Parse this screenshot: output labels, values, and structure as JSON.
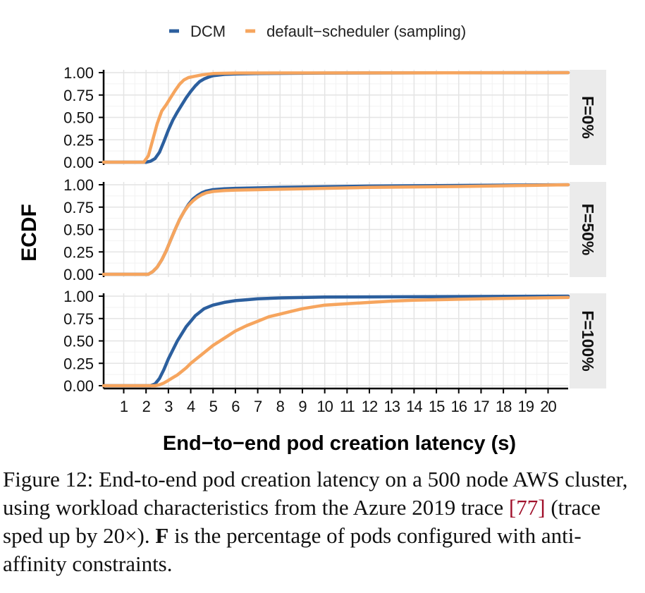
{
  "chart_data": {
    "type": "line",
    "xlabel": "End−to−end pod creation latency (s)",
    "ylabel": "ECDF",
    "xlim": [
      0.1,
      20.9
    ],
    "ylim": [
      0,
      1
    ],
    "x_ticks": [
      1,
      2,
      3,
      4,
      5,
      6,
      7,
      8,
      9,
      10,
      11,
      12,
      13,
      14,
      15,
      16,
      17,
      18,
      19,
      20
    ],
    "y_ticks": [
      "0.00",
      "0.25",
      "0.50",
      "0.75",
      "1.00"
    ],
    "grid": true,
    "legend_position": "top",
    "legend": [
      {
        "name": "DCM",
        "color": "#2c5f9e"
      },
      {
        "name": "default−scheduler (sampling)",
        "color": "#f6a55e"
      }
    ],
    "panels": [
      {
        "label": "F=0%",
        "series": [
          {
            "name": "DCM",
            "color": "#2c5f9e",
            "x": [
              0.1,
              2.0,
              2.2,
              2.4,
              2.6,
              2.8,
              3.0,
              3.2,
              3.4,
              3.6,
              3.8,
              4.0,
              4.2,
              4.4,
              4.6,
              4.8,
              5.0,
              5.5,
              6.0,
              7.0,
              10.0,
              20.9
            ],
            "y": [
              0,
              0,
              0.01,
              0.04,
              0.11,
              0.23,
              0.36,
              0.47,
              0.56,
              0.64,
              0.72,
              0.79,
              0.85,
              0.9,
              0.93,
              0.95,
              0.965,
              0.98,
              0.985,
              0.99,
              0.995,
              1.0
            ]
          },
          {
            "name": "default−scheduler (sampling)",
            "color": "#f6a55e",
            "x": [
              0.1,
              1.9,
              2.1,
              2.3,
              2.5,
              2.7,
              2.9,
              3.1,
              3.3,
              3.5,
              3.7,
              3.9,
              4.2,
              4.5,
              5.0,
              6.0,
              20.9
            ],
            "y": [
              0,
              0,
              0.07,
              0.25,
              0.43,
              0.57,
              0.64,
              0.72,
              0.8,
              0.87,
              0.92,
              0.945,
              0.96,
              0.975,
              0.99,
              0.995,
              1.0
            ]
          }
        ]
      },
      {
        "label": "F=50%",
        "series": [
          {
            "name": "DCM",
            "color": "#2c5f9e",
            "x": [
              0.1,
              2.1,
              2.3,
              2.5,
              2.7,
              2.9,
              3.1,
              3.3,
              3.5,
              3.7,
              3.9,
              4.1,
              4.3,
              4.5,
              4.7,
              5.0,
              5.5,
              6.0,
              8.0,
              12.0,
              20.9
            ],
            "y": [
              0,
              0,
              0.03,
              0.08,
              0.16,
              0.26,
              0.38,
              0.5,
              0.61,
              0.7,
              0.78,
              0.84,
              0.88,
              0.91,
              0.93,
              0.945,
              0.955,
              0.96,
              0.97,
              0.985,
              1.0
            ]
          },
          {
            "name": "default−scheduler (sampling)",
            "color": "#f6a55e",
            "x": [
              0.1,
              2.1,
              2.3,
              2.5,
              2.7,
              2.9,
              3.1,
              3.3,
              3.5,
              3.7,
              3.9,
              4.1,
              4.3,
              4.5,
              4.7,
              5.0,
              5.5,
              6.0,
              7.0,
              9.0,
              12.0,
              16.0,
              20.9
            ],
            "y": [
              0,
              0,
              0.03,
              0.08,
              0.16,
              0.26,
              0.38,
              0.5,
              0.61,
              0.7,
              0.77,
              0.82,
              0.86,
              0.89,
              0.91,
              0.925,
              0.935,
              0.94,
              0.945,
              0.955,
              0.97,
              0.98,
              1.0
            ]
          }
        ]
      },
      {
        "label": "F=100%",
        "series": [
          {
            "name": "DCM",
            "color": "#2c5f9e",
            "x": [
              0.1,
              2.2,
              2.4,
              2.6,
              2.8,
              3.0,
              3.2,
              3.4,
              3.6,
              3.8,
              4.0,
              4.2,
              4.4,
              4.6,
              4.8,
              5.0,
              5.5,
              6.0,
              6.5,
              7.0,
              8.0,
              10.0,
              20.9
            ],
            "y": [
              0,
              0,
              0.02,
              0.08,
              0.18,
              0.3,
              0.4,
              0.5,
              0.58,
              0.66,
              0.72,
              0.78,
              0.82,
              0.86,
              0.88,
              0.9,
              0.93,
              0.95,
              0.96,
              0.97,
              0.98,
              0.99,
              1.0
            ]
          },
          {
            "name": "default−scheduler (sampling)",
            "color": "#f6a55e",
            "x": [
              0.1,
              2.4,
              2.6,
              2.8,
              3.0,
              3.2,
              3.4,
              3.6,
              3.8,
              4.0,
              4.5,
              5.0,
              5.5,
              6.0,
              6.5,
              7.0,
              7.5,
              8.0,
              8.5,
              9.0,
              9.5,
              10.0,
              11.0,
              12.0,
              13.0,
              14.0,
              16.0,
              18.0,
              20.9
            ],
            "y": [
              0,
              0,
              0.01,
              0.03,
              0.06,
              0.09,
              0.12,
              0.16,
              0.2,
              0.25,
              0.35,
              0.45,
              0.53,
              0.61,
              0.67,
              0.72,
              0.77,
              0.8,
              0.83,
              0.86,
              0.88,
              0.9,
              0.915,
              0.93,
              0.945,
              0.955,
              0.965,
              0.975,
              0.985
            ]
          }
        ]
      }
    ]
  },
  "caption": {
    "label": "Figure 12:",
    "part1": "End-to-end pod creation latency on a 500 node AWS cluster, using workload characteristics from the Azure 2019 trace",
    "ref_open": "[",
    "ref": "77",
    "ref_close": "]",
    "part2": "(trace sped up by 20×).",
    "bold": "F",
    "part3": "is the percentage of pods configured with anti-affinity constraints."
  }
}
